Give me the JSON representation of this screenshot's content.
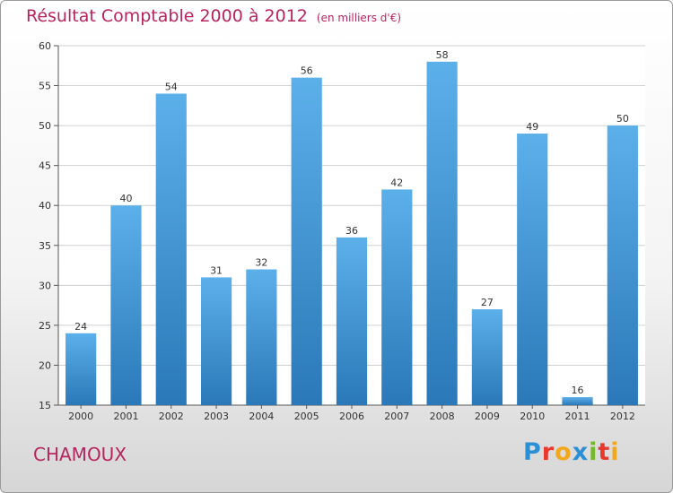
{
  "header": {
    "title": "Résultat Comptable 2000 à 2012",
    "subtitle": "(en milliers d'€)"
  },
  "footer": {
    "commune": "CHAMOUX",
    "logo_text": "Proxiti",
    "logo_letters": [
      {
        "ch": "P",
        "color": "#2a8fd4"
      },
      {
        "ch": "r",
        "color": "#e8392f"
      },
      {
        "ch": "o",
        "color": "#f2a81d"
      },
      {
        "ch": "x",
        "color": "#2a8fd4"
      },
      {
        "ch": "i",
        "color": "#76b82a"
      },
      {
        "ch": "t",
        "color": "#e8392f"
      },
      {
        "ch": "i",
        "color": "#f2a81d"
      }
    ]
  },
  "colors": {
    "bar_top": "#5cb0ea",
    "bar_bottom": "#2a78b8",
    "grid": "#d0d0d0",
    "title": "#b8245e"
  },
  "chart_data": {
    "type": "bar",
    "title": "Résultat Comptable 2000 à 2012",
    "subtitle": "(en milliers d'€)",
    "categories": [
      "2000",
      "2001",
      "2002",
      "2003",
      "2004",
      "2005",
      "2006",
      "2007",
      "2008",
      "2009",
      "2010",
      "2011",
      "2012"
    ],
    "values": [
      24,
      40,
      54,
      31,
      32,
      56,
      36,
      42,
      58,
      27,
      49,
      16,
      50
    ],
    "ylim": [
      15,
      60
    ],
    "yticks": [
      15,
      20,
      25,
      30,
      35,
      40,
      45,
      50,
      55,
      60
    ],
    "xlabel": "",
    "ylabel": "",
    "grid": true,
    "legend": "none"
  }
}
